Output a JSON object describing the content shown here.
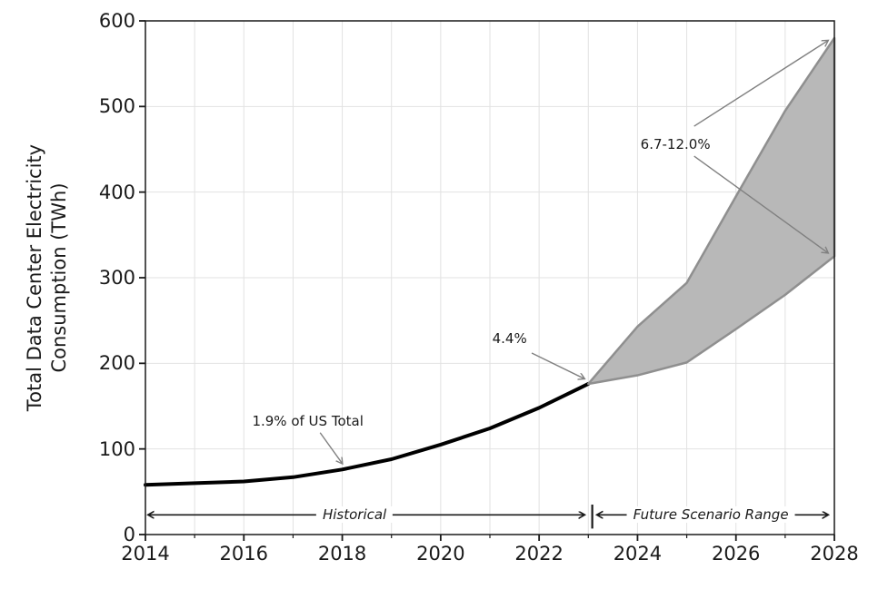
{
  "figure": {
    "background_color": "#ffffff",
    "text_color": "#1a1a1a"
  },
  "chart_data": {
    "type": "area",
    "title": "",
    "xlabel": "",
    "ylabel": "Total Data Center Electricity Consumption (TWh)",
    "ylabel_lines": {
      "line1": "Total Data Center Electricity",
      "line2": "Consumption (TWh)"
    },
    "xlim": [
      2014,
      2028
    ],
    "ylim": [
      0,
      600
    ],
    "x_ticks": [
      2014,
      2016,
      2018,
      2020,
      2022,
      2024,
      2026,
      2028
    ],
    "x_minor_ticks": [
      2015,
      2017,
      2019,
      2021,
      2023,
      2025,
      2027
    ],
    "y_ticks": [
      0,
      100,
      200,
      300,
      400,
      500,
      600
    ],
    "grid": {
      "show": true,
      "color": "#e2e2e2",
      "vertical_every_year": true,
      "horizontal_major_only": true
    },
    "legend": {
      "show": false
    },
    "series": [
      {
        "name": "Historical",
        "type": "line",
        "color": "#000000",
        "x": [
          2014,
          2015,
          2016,
          2017,
          2018,
          2019,
          2020,
          2021,
          2022,
          2023
        ],
        "values": [
          58,
          60,
          62,
          67,
          76,
          88,
          105,
          124,
          148,
          176
        ]
      },
      {
        "name": "Future Scenario Range",
        "type": "band",
        "fill_color": "#b8b8b8",
        "edge_color": "#8f8f8f",
        "x": [
          2023,
          2024,
          2025,
          2026,
          2027,
          2028
        ],
        "lower": [
          176,
          186,
          201,
          240,
          280,
          325
        ],
        "upper": [
          176,
          243,
          294,
          395,
          495,
          580
        ]
      }
    ],
    "annotations": {
      "us_total_2018": {
        "text": "1.9% of US Total",
        "color": "#808080",
        "text_xy": [
          2017.3,
          133
        ],
        "arrows": [
          {
            "from": [
              2017.55,
              119
            ],
            "to": [
              2018.0,
              83
            ]
          }
        ]
      },
      "pct_2023": {
        "text": "4.4%",
        "color": "#808080",
        "text_xy": [
          2021.4,
          229
        ],
        "arrows": [
          {
            "from": [
              2021.85,
              212
            ],
            "to": [
              2022.92,
              182
            ]
          }
        ]
      },
      "range_2028": {
        "text": "6.7-12.0%",
        "color": "#808080",
        "text_xy": [
          2024.77,
          456
        ],
        "arrows": [
          {
            "from": [
              2025.15,
              477
            ],
            "to": [
              2027.87,
              577
            ]
          },
          {
            "from": [
              2025.15,
              442
            ],
            "to": [
              2027.87,
              329
            ]
          }
        ]
      },
      "historical_span": {
        "text": "Historical",
        "style": "double_arrow",
        "color": "#1a1a1a",
        "x1": 2014.06,
        "x2": 2022.92,
        "y": 23,
        "text_xy": [
          2018.25,
          23
        ]
      },
      "future_span": {
        "text": "Future Scenario Range",
        "style": "double_arrow_bar",
        "color": "#1a1a1a",
        "x1": 2023.18,
        "x2": 2027.87,
        "y": 23,
        "bar_x": 2023.08,
        "bar_y": [
          7,
          35
        ],
        "text_xy": [
          2025.49,
          23
        ]
      }
    }
  }
}
